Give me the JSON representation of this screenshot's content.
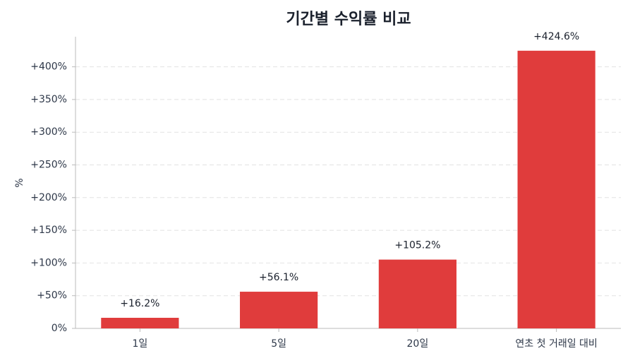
{
  "chart_data": {
    "type": "bar",
    "title": "기간별 수익률 비교",
    "ylabel": "%",
    "categories": [
      "1일",
      "5일",
      "20일",
      "연초 첫 거래일 대비"
    ],
    "values": [
      16.2,
      56.1,
      105.2,
      424.6
    ],
    "value_labels": [
      "+16.2%",
      "+56.1%",
      "+105.2%",
      "+424.6%"
    ],
    "color": "#e03c3c",
    "ylim": [
      0,
      446
    ],
    "yticks": [
      {
        "value": 0,
        "label": "0%"
      },
      {
        "value": 50,
        "label": "+50%"
      },
      {
        "value": 100,
        "label": "+100%"
      },
      {
        "value": 150,
        "label": "+150%"
      },
      {
        "value": 200,
        "label": "+200%"
      },
      {
        "value": 250,
        "label": "+250%"
      },
      {
        "value": 300,
        "label": "+300%"
      },
      {
        "value": 350,
        "label": "+350%"
      },
      {
        "value": 400,
        "label": "+400%"
      }
    ],
    "grid": true
  }
}
